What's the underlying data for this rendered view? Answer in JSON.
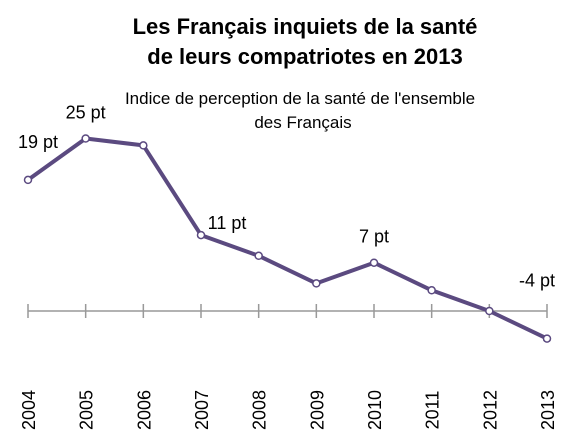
{
  "chart_data": {
    "type": "line",
    "title": [
      "Les Français inquiets de la santé",
      "de leurs compatriotes en 2013"
    ],
    "subtitle": [
      "Indice de perception de la santé de l'ensemble",
      "des Français"
    ],
    "categories": [
      "2004",
      "2005",
      "2006",
      "2007",
      "2008",
      "2009",
      "2010",
      "2011",
      "2012",
      "2013"
    ],
    "series": [
      {
        "name": "Indice",
        "color": "#5b4a80",
        "values": [
          19,
          25,
          24,
          11,
          8,
          4,
          7,
          3,
          0,
          -4
        ],
        "value_labels": [
          "19 pt",
          "25 pt",
          null,
          "11 pt",
          null,
          null,
          "7 pt",
          null,
          null,
          "-4 pt"
        ]
      }
    ],
    "ylim": [
      -6,
      28
    ]
  }
}
